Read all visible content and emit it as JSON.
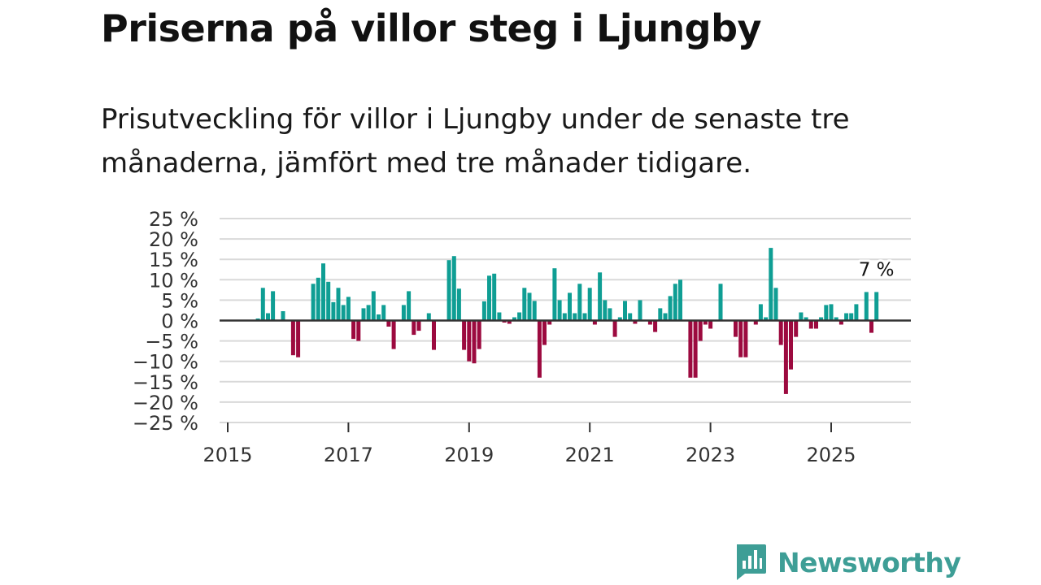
{
  "header": {
    "title": "Priserna på villor steg i Ljungby",
    "subtitle": "Prisutveckling för villor i Ljungby under de senaste tre månaderna, jämfört med tre månader tidigare."
  },
  "brand": {
    "name": "Newsworthy",
    "logo_icon": "bar-chart-speech-bubble-icon"
  },
  "colors": {
    "positive": "#0f9e94",
    "negative": "#9c0a3f",
    "grid": "#d9d9d9",
    "zero_line": "#333333",
    "brand": "#3e9e96"
  },
  "chart_data": {
    "type": "bar",
    "title": "Priserna på villor steg i Ljungby",
    "xlabel": "",
    "ylabel": "",
    "ylim": [
      -25,
      25
    ],
    "y_ticks": [
      25,
      20,
      15,
      10,
      5,
      0,
      -5,
      -10,
      -15,
      -20,
      -25
    ],
    "y_tick_labels": [
      "25 %",
      "20 %",
      "15 %",
      "10 %",
      "5 %",
      "0 %",
      "−5 %",
      "−10 %",
      "−15 %",
      "−20 %",
      "−25 %"
    ],
    "x_tick_labels": [
      "2015",
      "2017",
      "2019",
      "2021",
      "2023",
      "2025"
    ],
    "x_ticks": [
      2015,
      2017,
      2019,
      2021,
      2023,
      2025
    ],
    "x_range": [
      2015,
      2026.5
    ],
    "grid": true,
    "annotation": {
      "text": "7 %",
      "x": 2025.75,
      "y": 7
    },
    "series": [
      {
        "name": "Prisutveckling",
        "x": [
          2015.5,
          2015.583,
          2015.667,
          2015.75,
          2015.833,
          2015.917,
          2016.0,
          2016.083,
          2016.167,
          2016.25,
          2016.333,
          2016.417,
          2016.5,
          2016.583,
          2016.667,
          2016.75,
          2016.833,
          2016.917,
          2017.0,
          2017.083,
          2017.167,
          2017.25,
          2017.333,
          2017.417,
          2017.5,
          2017.583,
          2017.667,
          2017.75,
          2017.833,
          2017.917,
          2018.0,
          2018.083,
          2018.167,
          2018.25,
          2018.333,
          2018.417,
          2018.5,
          2018.583,
          2018.667,
          2018.75,
          2018.833,
          2018.917,
          2019.0,
          2019.083,
          2019.167,
          2019.25,
          2019.333,
          2019.417,
          2019.5,
          2019.583,
          2019.667,
          2019.75,
          2019.833,
          2019.917,
          2020.0,
          2020.083,
          2020.167,
          2020.25,
          2020.333,
          2020.417,
          2020.5,
          2020.583,
          2020.667,
          2020.75,
          2020.833,
          2020.917,
          2021.0,
          2021.083,
          2021.167,
          2021.25,
          2021.333,
          2021.417,
          2021.5,
          2021.583,
          2021.667,
          2021.75,
          2021.833,
          2021.917,
          2022.0,
          2022.083,
          2022.167,
          2022.25,
          2022.333,
          2022.417,
          2022.5,
          2022.583,
          2022.667,
          2022.75,
          2022.833,
          2022.917,
          2023.0,
          2023.083,
          2023.167,
          2023.25,
          2023.333,
          2023.417,
          2023.5,
          2023.583,
          2023.667,
          2023.75,
          2023.833,
          2023.917,
          2024.0,
          2024.083,
          2024.167,
          2024.25,
          2024.333,
          2024.417,
          2024.5,
          2024.583,
          2024.667,
          2024.75,
          2024.833,
          2024.917,
          2025.0,
          2025.083,
          2025.167,
          2025.25,
          2025.333,
          2025.417,
          2025.5,
          2025.583,
          2025.667,
          2025.75
        ],
        "values": [
          0.5,
          8,
          1.8,
          7.2,
          0,
          2.3,
          0,
          -8.5,
          -9,
          0,
          0,
          9,
          10.5,
          14,
          9.5,
          4.5,
          8,
          3.8,
          5.8,
          -4.5,
          -5,
          3,
          3.8,
          7.2,
          1.5,
          3.8,
          -1.5,
          -7,
          0,
          3.8,
          7.2,
          -3.5,
          -2.5,
          0,
          1.8,
          -7.2,
          0,
          0,
          14.8,
          15.8,
          7.8,
          -7.2,
          -10,
          -10.5,
          -7,
          4.7,
          11,
          11.5,
          2,
          -0.5,
          -0.8,
          0.8,
          2,
          8,
          6.8,
          4.8,
          -14,
          -6,
          -1,
          12.8,
          5,
          1.8,
          6.8,
          1.8,
          9,
          1.8,
          8,
          -1,
          11.8,
          5,
          3,
          -4,
          0.8,
          4.8,
          1.8,
          -0.8,
          5,
          0,
          -1,
          -2.8,
          3,
          1.8,
          6,
          9,
          10,
          0,
          -14,
          -14,
          -5,
          -1,
          -2,
          0,
          9,
          0,
          0,
          -4,
          -9,
          -9,
          0,
          -1,
          4,
          0.8,
          17.8,
          8,
          -6,
          -18,
          -12,
          -4,
          2,
          0.8,
          -2,
          -2,
          0.8,
          3.8,
          4,
          0.8,
          -1,
          1.8,
          1.8,
          4,
          0,
          7,
          -3,
          7
        ]
      }
    ]
  }
}
